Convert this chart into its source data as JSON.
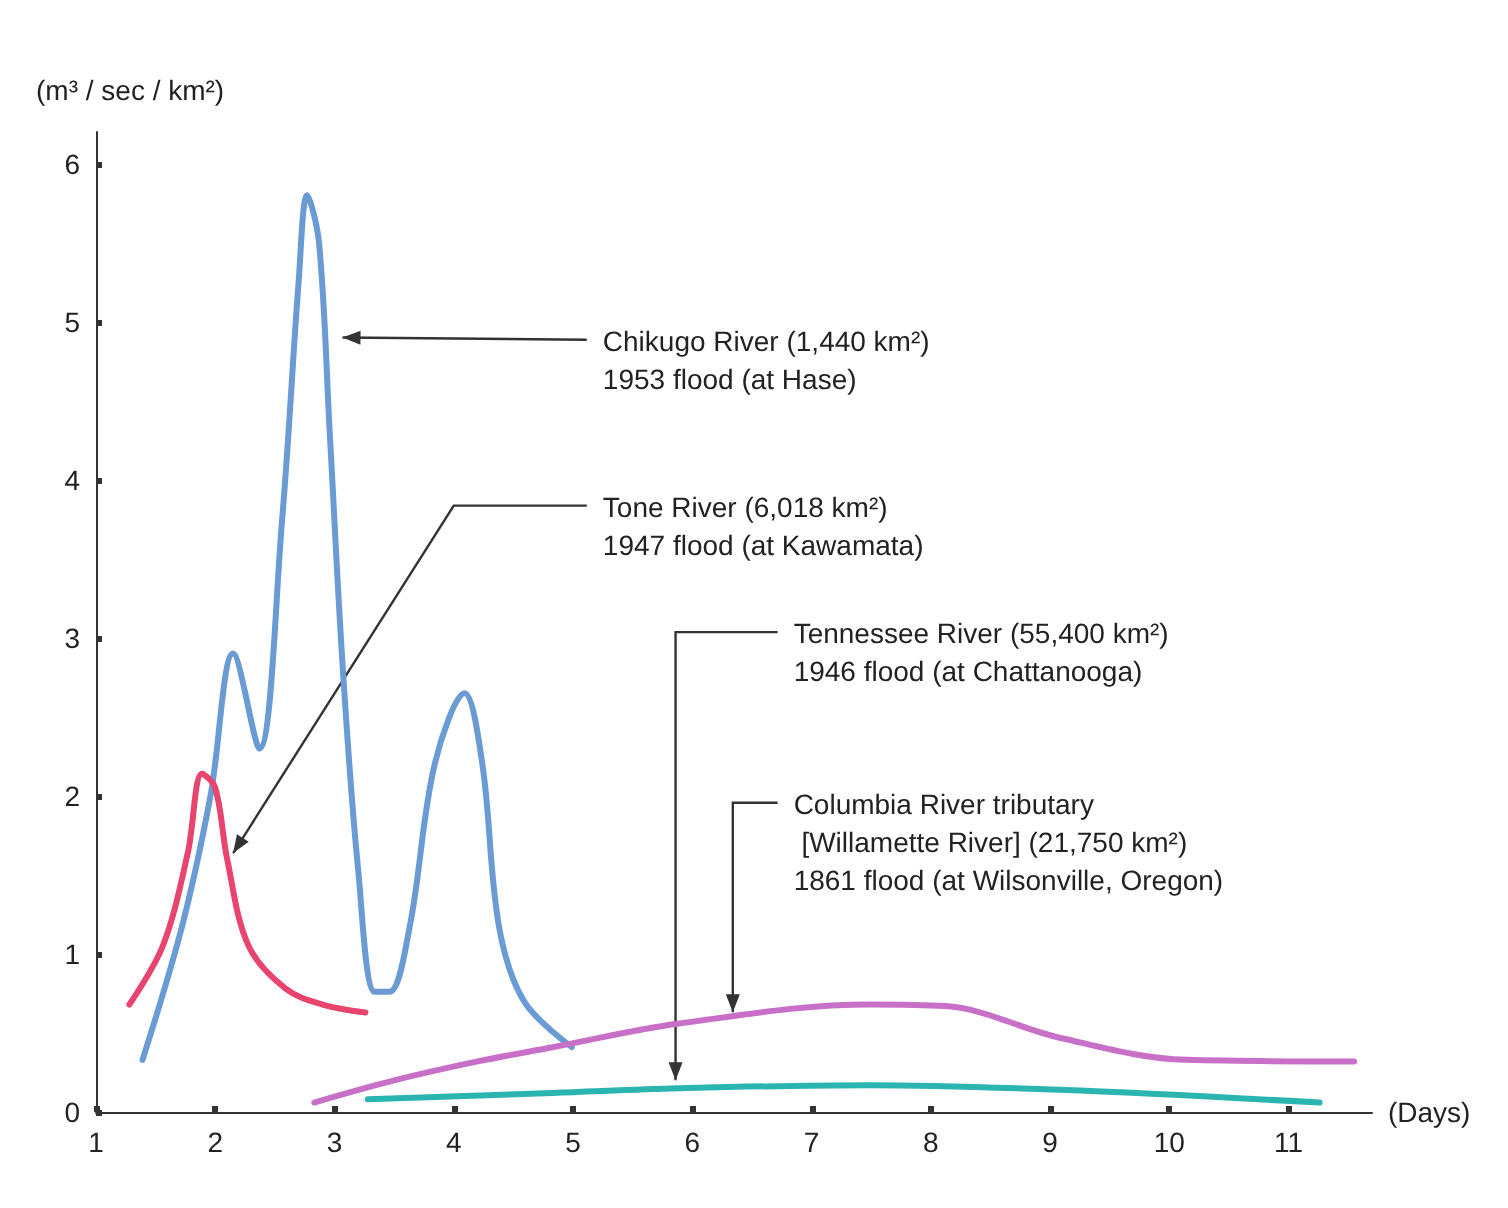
{
  "chart_data": {
    "type": "line",
    "ylabel": "(m³ / sec / km²)",
    "xlabel": "(Days)",
    "xlim": [
      1,
      11.7
    ],
    "xticks": [
      1,
      2,
      3,
      4,
      5,
      6,
      7,
      8,
      9,
      10,
      11
    ],
    "ylim": [
      0,
      6.2
    ],
    "yticks": [
      0,
      1,
      2,
      3,
      4,
      5,
      6
    ],
    "grid": false,
    "marker": "none",
    "line_style": "solid",
    "series": [
      {
        "color": "#6a9bd4",
        "x": [
          1.39,
          1.72,
          1.96,
          2.15,
          2.37,
          2.56,
          2.7,
          2.77,
          2.87,
          2.96,
          3.07,
          3.2,
          3.34,
          3.46,
          3.63,
          3.84,
          4.09,
          4.24,
          4.38,
          4.59,
          4.99
        ],
        "values": [
          0.33,
          1.17,
          2.0,
          2.9,
          2.3,
          3.74,
          5.26,
          5.8,
          5.5,
          4.3,
          2.8,
          1.52,
          0.76,
          0.76,
          1.17,
          2.2,
          2.65,
          2.2,
          1.17,
          0.7,
          0.41
        ]
      },
      {
        "color": "#e8456e",
        "x": [
          1.28,
          1.56,
          1.77,
          1.89,
          2.0,
          2.1,
          2.28,
          2.59,
          2.9,
          3.26
        ],
        "values": [
          0.68,
          1.05,
          1.64,
          2.14,
          2.05,
          1.6,
          1.05,
          0.78,
          0.68,
          0.63
        ]
      },
      {
        "color": "#c86fc8",
        "x": [
          2.83,
          3.5,
          4.2,
          4.83,
          5.89,
          7.49,
          8.12,
          9.08,
          10.14,
          11.55
        ],
        "values": [
          0.06,
          0.2,
          0.32,
          0.41,
          0.56,
          0.68,
          0.67,
          0.47,
          0.33,
          0.32
        ]
      },
      {
        "color": "#2bb5b0",
        "x": [
          3.28,
          4.83,
          5.89,
          7.49,
          9.08,
          11.26
        ],
        "values": [
          0.08,
          0.12,
          0.15,
          0.17,
          0.14,
          0.06
        ]
      }
    ],
    "annotations": [
      {
        "text": "Chikugo River (1,440 km²)\n1953 flood (at Hase)",
        "x": 3.0,
        "y": 4.9
      },
      {
        "text": "Tone River (6,018 km²)\n1947 flood (at Kawamata)",
        "x": 2.1,
        "y": 1.6
      },
      {
        "text": "Tennessee River (55,400 km²)\n1946 flood (at Chattanooga)",
        "x": 5.86,
        "y": 0.15
      },
      {
        "text": "Columbia River tributary\n [Willamette River] (21,750 km²)\n1861 flood (at Wilsonville, Oregon)",
        "x": 6.34,
        "y": 0.58
      }
    ]
  }
}
